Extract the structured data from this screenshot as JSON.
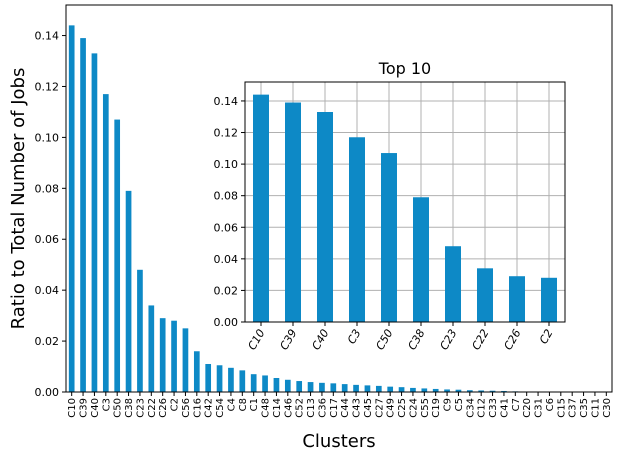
{
  "chart_data": [
    {
      "type": "bar",
      "title": "",
      "xlabel": "Clusters",
      "ylabel": "Ratio to Total Number of Jobs",
      "ylim": [
        0,
        0.152
      ],
      "yticks": [
        0.0,
        0.02,
        0.04,
        0.06,
        0.08,
        0.1,
        0.12,
        0.14
      ],
      "ytick_labels": [
        "0.00",
        "0.02",
        "0.04",
        "0.06",
        "0.08",
        "0.10",
        "0.12",
        "0.14"
      ],
      "grid": false,
      "bar_color": "#0d89c6",
      "categories": [
        "C10",
        "C39",
        "C40",
        "C3",
        "C50",
        "C38",
        "C23",
        "C22",
        "C26",
        "C2",
        "C56",
        "C16",
        "C42",
        "C54",
        "C4",
        "C8",
        "C1",
        "C48",
        "C14",
        "C46",
        "C52",
        "C13",
        "C36",
        "C17",
        "C44",
        "C43",
        "C45",
        "C27",
        "C49",
        "C25",
        "C24",
        "C55",
        "C19",
        "C9",
        "C5",
        "C34",
        "C12",
        "C33",
        "C41",
        "C7",
        "C20",
        "C31",
        "C6",
        "C15",
        "C37",
        "C35",
        "C11",
        "C30"
      ],
      "values": [
        0.144,
        0.139,
        0.133,
        0.117,
        0.107,
        0.079,
        0.048,
        0.034,
        0.029,
        0.028,
        0.025,
        0.016,
        0.011,
        0.0105,
        0.0095,
        0.0085,
        0.007,
        0.0065,
        0.0055,
        0.0048,
        0.0043,
        0.0039,
        0.0036,
        0.0034,
        0.0031,
        0.0028,
        0.0026,
        0.0024,
        0.0021,
        0.0019,
        0.0016,
        0.0014,
        0.0012,
        0.001,
        0.0009,
        0.0007,
        0.0006,
        0.0005,
        0.0004,
        0.00025,
        0.00018,
        0.00012,
        8e-05,
        5e-05,
        3e-05,
        2e-05,
        1e-05,
        1e-05
      ]
    },
    {
      "type": "bar",
      "title": "Top 10",
      "xlabel": "",
      "ylabel": "",
      "ylim": [
        0,
        0.152
      ],
      "yticks": [
        0.0,
        0.02,
        0.04,
        0.06,
        0.08,
        0.1,
        0.12,
        0.14
      ],
      "ytick_labels": [
        "0.00",
        "0.02",
        "0.04",
        "0.06",
        "0.08",
        "0.10",
        "0.12",
        "0.14"
      ],
      "grid": true,
      "bar_color": "#0d89c6",
      "categories": [
        "C10",
        "C39",
        "C40",
        "C3",
        "C50",
        "C38",
        "C23",
        "C22",
        "C26",
        "C2"
      ],
      "values": [
        0.144,
        0.139,
        0.133,
        0.117,
        0.107,
        0.079,
        0.048,
        0.034,
        0.029,
        0.028
      ]
    }
  ]
}
